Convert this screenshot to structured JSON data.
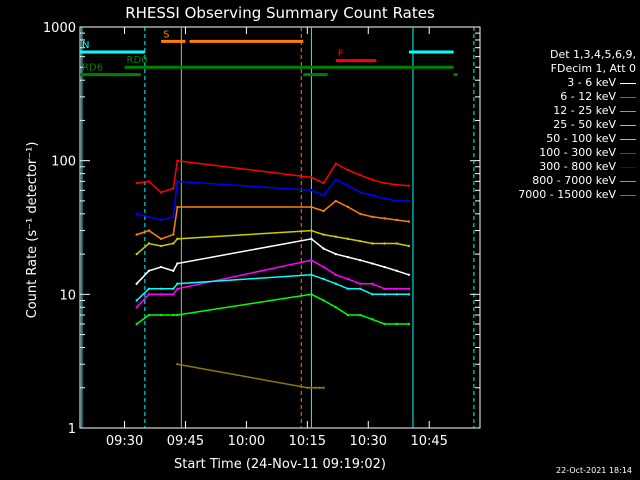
{
  "chart_data": {
    "type": "line",
    "title": "RHESSI Observing Summary Count Rates",
    "xlabel": "Start Time (24-Nov-11 09:19:02)",
    "ylabel": "Count Rate (s⁻¹ detector⁻¹)",
    "y_scale": "log",
    "ylim": [
      1,
      1000
    ],
    "xlim": [
      "09:19:02",
      "10:57:30"
    ],
    "x_ticks": [
      "09:30",
      "09:45",
      "10:00",
      "10:15",
      "10:30",
      "10:45"
    ],
    "y_ticks": [
      "1",
      "10",
      "100",
      "1000"
    ],
    "legend_header": [
      "Det 1,3,4,5,6,9,",
      "FDecim 1, Att 0"
    ],
    "series": [
      {
        "name": "3 - 6 keV",
        "color": "#ffffff",
        "x": [
          "09:33",
          "09:36",
          "09:39",
          "09:42",
          "09:43",
          "10:16",
          "10:19",
          "10:22",
          "10:25",
          "10:28",
          "10:31",
          "10:34",
          "10:37",
          "10:40"
        ],
        "values": [
          12,
          15,
          16,
          15,
          17,
          26,
          22,
          20,
          19,
          18,
          17,
          16,
          15,
          14
        ]
      },
      {
        "name": "6 - 12 keV",
        "color": "#ff00ff",
        "x": [
          "09:33",
          "09:36",
          "09:39",
          "09:42",
          "09:43",
          "10:16",
          "10:19",
          "10:22",
          "10:25",
          "10:28",
          "10:31",
          "10:34",
          "10:37",
          "10:40"
        ],
        "values": [
          8,
          10,
          10,
          10,
          11,
          18,
          16,
          14,
          13,
          12,
          12,
          11,
          11,
          11
        ]
      },
      {
        "name": "12 - 25 keV",
        "color": "#00ff00",
        "x": [
          "09:33",
          "09:36",
          "09:39",
          "09:42",
          "09:43",
          "10:16",
          "10:19",
          "10:22",
          "10:25",
          "10:28",
          "10:31",
          "10:34",
          "10:37",
          "10:40"
        ],
        "values": [
          6,
          7,
          7,
          7,
          7,
          10,
          9,
          8,
          7,
          7,
          6.5,
          6,
          6,
          6
        ]
      },
      {
        "name": "25 - 50 keV",
        "color": "#00ffff",
        "x": [
          "09:33",
          "09:36",
          "09:39",
          "09:42",
          "09:43",
          "10:16",
          "10:19",
          "10:22",
          "10:25",
          "10:28",
          "10:31",
          "10:34",
          "10:37",
          "10:40"
        ],
        "values": [
          9,
          11,
          11,
          11,
          12,
          14,
          13,
          12,
          11,
          11,
          10,
          10,
          10,
          10
        ]
      },
      {
        "name": "50 - 100 keV",
        "color": "#cccc00",
        "x": [
          "09:33",
          "09:36",
          "09:39",
          "09:42",
          "09:43",
          "10:16",
          "10:19",
          "10:22",
          "10:25",
          "10:28",
          "10:31",
          "10:34",
          "10:37",
          "10:40"
        ],
        "values": [
          20,
          24,
          23,
          24,
          26,
          30,
          28,
          27,
          26,
          25,
          24,
          24,
          24,
          23
        ]
      },
      {
        "name": "100 - 300 keV",
        "color": "#ff0000",
        "x": [
          "09:33",
          "09:36",
          "09:39",
          "09:42",
          "09:43",
          "10:16",
          "10:19",
          "10:22",
          "10:25",
          "10:28",
          "10:31",
          "10:34",
          "10:37",
          "10:40"
        ],
        "values": [
          68,
          70,
          58,
          62,
          100,
          75,
          68,
          95,
          85,
          78,
          72,
          68,
          66,
          65
        ]
      },
      {
        "name": "300 - 800 keV",
        "color": "#0000ff",
        "x": [
          "09:33",
          "09:36",
          "09:39",
          "09:42",
          "09:43",
          "10:16",
          "10:19",
          "10:22",
          "10:25",
          "10:28",
          "10:31",
          "10:34",
          "10:37",
          "10:40"
        ],
        "values": [
          40,
          38,
          36,
          38,
          70,
          60,
          55,
          72,
          65,
          58,
          55,
          52,
          50,
          50
        ]
      },
      {
        "name": "800 - 7000 keV",
        "color": "#ff8000",
        "x": [
          "09:33",
          "09:36",
          "09:39",
          "09:42",
          "09:43",
          "10:16",
          "10:19",
          "10:22",
          "10:25",
          "10:28",
          "10:31",
          "10:34",
          "10:37",
          "10:40"
        ],
        "values": [
          28,
          30,
          26,
          28,
          45,
          45,
          42,
          50,
          45,
          40,
          38,
          37,
          36,
          35
        ]
      },
      {
        "name": "7000 - 15000 keV",
        "color": "#8b7a00",
        "x": [
          "09:43",
          "10:15",
          "10:16",
          "10:17",
          "10:18",
          "10:19"
        ],
        "values": [
          3,
          2,
          2,
          2,
          2,
          2
        ]
      }
    ],
    "flags": [
      {
        "label": "N",
        "color": "#00ffff",
        "y": 650,
        "segments": [
          [
            "09:19:02",
            "09:35"
          ],
          [
            "10:40",
            "10:51"
          ]
        ]
      },
      {
        "label": "S",
        "color": "#ff8000",
        "y": 780,
        "segments": [
          [
            "09:39",
            "09:45"
          ],
          [
            "09:46",
            "10:14"
          ]
        ]
      },
      {
        "label": "F",
        "color": "#ff0000",
        "y": 560,
        "segments": [
          [
            "10:22",
            "10:32"
          ]
        ]
      },
      {
        "label": "RD0",
        "color": "#008000",
        "y": 500,
        "segments": [
          [
            "09:30",
            "10:14"
          ],
          [
            "10:14",
            "10:51"
          ]
        ]
      },
      {
        "label": "RD6",
        "color": "#008000",
        "y": 440,
        "segments": [
          [
            "09:19:02",
            "09:34"
          ],
          [
            "10:14",
            "10:20"
          ],
          [
            "10:51",
            "10:52"
          ]
        ]
      }
    ],
    "vlines": [
      {
        "x": "09:19:30",
        "color": "#00ffff",
        "style": "solid"
      },
      {
        "x": "09:35",
        "color": "#00ffff",
        "style": "dashed"
      },
      {
        "x": "09:44",
        "color": "#00ffff",
        "style": "solid"
      },
      {
        "x": "09:44",
        "color": "#ff8000",
        "style": "solid"
      },
      {
        "x": "10:13:30",
        "color": "#ff8000",
        "style": "dashed"
      },
      {
        "x": "10:16",
        "color": "#00ffff",
        "style": "solid"
      },
      {
        "x": "10:41",
        "color": "#00ffff",
        "style": "solid"
      },
      {
        "x": "10:56",
        "color": "#00ffff",
        "style": "dashed"
      }
    ],
    "grid": false,
    "legend_position": "right"
  },
  "timestamp": "22-Oct-2021 18:14"
}
